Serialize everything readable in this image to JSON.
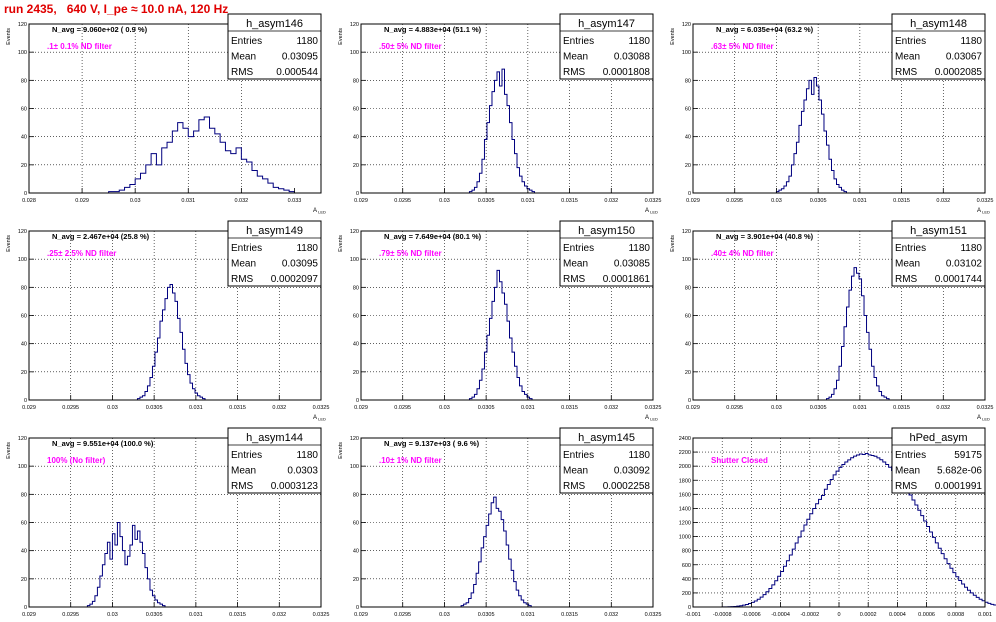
{
  "run_title": "run 2435,   640 V, I_pe ≈ 10.0 nA, 120 Hz",
  "colors": {
    "histogram": "#00007f",
    "filter_label": "#ff00ff",
    "title": "#e00000",
    "grid": "#000000"
  },
  "chart_data": [
    {
      "type": "histogram",
      "name": "h_asym146",
      "ylabel": "Events",
      "xlabel": "A_LED",
      "navg": "N_avg = 9.060e+02 ( 0.9 %)",
      "filter": ".1± 0.1% ND filter",
      "stats": {
        "entries_label": "Entries",
        "entries": "1180",
        "mean_label": "Mean",
        "mean": "0.03095",
        "rms_label": "RMS",
        "rms": "0.000544"
      },
      "xlim": [
        0.028,
        0.0335
      ],
      "ylim": [
        0,
        120
      ],
      "xticks": [
        "0.028",
        "0.029",
        "0.03",
        "0.031",
        "0.032",
        "0.033"
      ],
      "xtick_values": [
        0.028,
        0.029,
        0.03,
        0.031,
        0.032,
        0.033
      ],
      "yticks": [
        "0",
        "20",
        "40",
        "60",
        "80",
        "100",
        "120"
      ],
      "bins_x0": 0.0295,
      "bin_width": 0.0001,
      "counts": [
        1,
        1,
        2,
        4,
        6,
        10,
        14,
        20,
        28,
        20,
        32,
        36,
        44,
        50,
        46,
        40,
        44,
        52,
        54,
        46,
        42,
        36,
        30,
        28,
        32,
        24,
        22,
        16,
        12,
        10,
        7,
        4,
        3,
        2,
        1
      ]
    },
    {
      "type": "histogram",
      "name": "h_asym147",
      "ylabel": "Events",
      "xlabel": "A_LED",
      "navg": "N_avg = 4.883e+04 (51.1 %)",
      "filter": ".50± 5% ND filter",
      "stats": {
        "entries_label": "Entries",
        "entries": "1180",
        "mean_label": "Mean",
        "mean": "0.03088",
        "rms_label": "RMS",
        "rms": "0.0001808"
      },
      "xlim": [
        0.029,
        0.0325
      ],
      "ylim": [
        0,
        120
      ],
      "xticks": [
        "0.029",
        "0.0295",
        "0.03",
        "0.0305",
        "0.031",
        "0.0315",
        "0.032",
        "0.0325"
      ],
      "xtick_values": [
        0.029,
        0.0295,
        0.03,
        0.0305,
        0.031,
        0.0315,
        0.032,
        0.0325
      ],
      "yticks": [
        "0",
        "20",
        "40",
        "60",
        "80",
        "100",
        "120"
      ],
      "bins_x0": 0.0303,
      "bin_width": 3e-05,
      "counts": [
        1,
        2,
        4,
        8,
        14,
        24,
        38,
        50,
        62,
        72,
        80,
        86,
        76,
        88,
        70,
        62,
        50,
        38,
        28,
        18,
        12,
        8,
        5,
        3,
        2,
        1
      ]
    },
    {
      "type": "histogram",
      "name": "h_asym148",
      "ylabel": "Events",
      "xlabel": "A_LED",
      "navg": "N_avg = 6.035e+04 (63.2 %)",
      "filter": ".63± 5% ND filter",
      "stats": {
        "entries_label": "Entries",
        "entries": "1180",
        "mean_label": "Mean",
        "mean": "0.03067",
        "rms_label": "RMS",
        "rms": "0.0002085"
      },
      "xlim": [
        0.029,
        0.0325
      ],
      "ylim": [
        0,
        120
      ],
      "xticks": [
        "0.029",
        "0.0295",
        "0.03",
        "0.0305",
        "0.031",
        "0.0315",
        "0.032",
        "0.0325"
      ],
      "xtick_values": [
        0.029,
        0.0295,
        0.03,
        0.0305,
        0.031,
        0.0315,
        0.032,
        0.0325
      ],
      "yticks": [
        "0",
        "20",
        "40",
        "60",
        "80",
        "100",
        "120"
      ],
      "bins_x0": 0.03,
      "bin_width": 3e-05,
      "counts": [
        1,
        2,
        3,
        5,
        8,
        12,
        20,
        28,
        36,
        48,
        58,
        66,
        74,
        80,
        70,
        82,
        76,
        66,
        56,
        44,
        34,
        24,
        16,
        10,
        6,
        4,
        2,
        1
      ]
    },
    {
      "type": "histogram",
      "name": "h_asym149",
      "ylabel": "Events",
      "xlabel": "A_LED",
      "navg": "N_avg = 2.467e+04 (25.8 %)",
      "filter": ".25± 2.5% ND filter",
      "stats": {
        "entries_label": "Entries",
        "entries": "1180",
        "mean_label": "Mean",
        "mean": "0.03095",
        "rms_label": "RMS",
        "rms": "0.0002097"
      },
      "xlim": [
        0.029,
        0.0325
      ],
      "ylim": [
        0,
        120
      ],
      "xticks": [
        "0.029",
        "0.0295",
        "0.03",
        "0.0305",
        "0.031",
        "0.0315",
        "0.032",
        "0.0325"
      ],
      "xtick_values": [
        0.029,
        0.0295,
        0.03,
        0.0305,
        0.031,
        0.0315,
        0.032,
        0.0325
      ],
      "yticks": [
        "0",
        "20",
        "40",
        "60",
        "80",
        "100",
        "120"
      ],
      "bins_x0": 0.0303,
      "bin_width": 3e-05,
      "counts": [
        1,
        2,
        3,
        6,
        10,
        16,
        24,
        34,
        44,
        56,
        64,
        72,
        80,
        82,
        76,
        70,
        58,
        48,
        36,
        26,
        18,
        12,
        8,
        5,
        3,
        2,
        1
      ]
    },
    {
      "type": "histogram",
      "name": "h_asym150",
      "ylabel": "Events",
      "xlabel": "A_LED",
      "navg": "N_avg = 7.649e+04 (80.1 %)",
      "filter": ".79± 5% ND filter",
      "stats": {
        "entries_label": "Entries",
        "entries": "1180",
        "mean_label": "Mean",
        "mean": "0.03085",
        "rms_label": "RMS",
        "rms": "0.0001861"
      },
      "xlim": [
        0.029,
        0.0325
      ],
      "ylim": [
        0,
        120
      ],
      "xticks": [
        "0.029",
        "0.0295",
        "0.03",
        "0.0305",
        "0.031",
        "0.0315",
        "0.032",
        "0.0325"
      ],
      "xtick_values": [
        0.029,
        0.0295,
        0.03,
        0.0305,
        0.031,
        0.0315,
        0.032,
        0.0325
      ],
      "yticks": [
        "0",
        "20",
        "40",
        "60",
        "80",
        "100",
        "120"
      ],
      "bins_x0": 0.0303,
      "bin_width": 3e-05,
      "counts": [
        1,
        2,
        4,
        8,
        14,
        22,
        34,
        46,
        58,
        70,
        80,
        92,
        84,
        76,
        68,
        56,
        44,
        34,
        24,
        16,
        10,
        6,
        4,
        2,
        1
      ]
    },
    {
      "type": "histogram",
      "name": "h_asym151",
      "ylabel": "Events",
      "xlabel": "A_LED",
      "navg": "N_avg = 3.901e+04 (40.8 %)",
      "filter": ".40± 4% ND filter",
      "stats": {
        "entries_label": "Entries",
        "entries": "1180",
        "mean_label": "Mean",
        "mean": "0.03102",
        "rms_label": "RMS",
        "rms": "0.0001744"
      },
      "xlim": [
        0.029,
        0.0325
      ],
      "ylim": [
        0,
        120
      ],
      "xticks": [
        "0.029",
        "0.0295",
        "0.03",
        "0.0305",
        "0.031",
        "0.0315",
        "0.032",
        "0.0325"
      ],
      "xtick_values": [
        0.029,
        0.0295,
        0.03,
        0.0305,
        0.031,
        0.0315,
        0.032,
        0.0325
      ],
      "yticks": [
        "0",
        "20",
        "40",
        "60",
        "80",
        "100",
        "120"
      ],
      "bins_x0": 0.0306,
      "bin_width": 3e-05,
      "counts": [
        1,
        2,
        4,
        8,
        14,
        24,
        38,
        52,
        66,
        78,
        88,
        94,
        90,
        86,
        74,
        60,
        48,
        36,
        24,
        16,
        10,
        6,
        3,
        2,
        1
      ]
    },
    {
      "type": "histogram",
      "name": "h_asym144",
      "ylabel": "Events",
      "xlabel": "A_LED",
      "navg": "N_avg = 9.551e+04 (100.0 %)",
      "filter": "100% (No filter)",
      "stats": {
        "entries_label": "Entries",
        "entries": "1180",
        "mean_label": "Mean",
        "mean": "0.0303",
        "rms_label": "RMS",
        "rms": "0.0003123"
      },
      "xlim": [
        0.029,
        0.0325
      ],
      "ylim": [
        0,
        120
      ],
      "xticks": [
        "0.029",
        "0.0295",
        "0.03",
        "0.0305",
        "0.031",
        "0.0315",
        "0.032",
        "0.0325"
      ],
      "xtick_values": [
        0.029,
        0.0295,
        0.03,
        0.0305,
        0.031,
        0.0315,
        0.032,
        0.0325
      ],
      "yticks": [
        "0",
        "20",
        "40",
        "60",
        "80",
        "100",
        "120"
      ],
      "bins_x0": 0.0297,
      "bin_width": 3e-05,
      "counts": [
        1,
        2,
        4,
        8,
        14,
        22,
        30,
        38,
        46,
        34,
        52,
        44,
        60,
        50,
        40,
        30,
        36,
        44,
        58,
        48,
        54,
        46,
        38,
        28,
        20,
        12,
        8,
        5,
        3,
        2,
        1
      ]
    },
    {
      "type": "histogram",
      "name": "h_asym145",
      "ylabel": "Events",
      "xlabel": "A_LED",
      "navg": "N_avg = 9.137e+03 ( 9.6 %)",
      "filter": ".10± 1% ND filter",
      "stats": {
        "entries_label": "Entries",
        "entries": "1180",
        "mean_label": "Mean",
        "mean": "0.03092",
        "rms_label": "RMS",
        "rms": "0.0002258"
      },
      "xlim": [
        0.029,
        0.0325
      ],
      "ylim": [
        0,
        120
      ],
      "xticks": [
        "0.029",
        "0.0295",
        "0.03",
        "0.0305",
        "0.031",
        "0.0315",
        "0.032",
        "0.0325"
      ],
      "xtick_values": [
        0.029,
        0.0295,
        0.03,
        0.0305,
        0.031,
        0.0315,
        0.032,
        0.0325
      ],
      "yticks": [
        "0",
        "20",
        "40",
        "60",
        "80",
        "100",
        "120"
      ],
      "bins_x0": 0.0302,
      "bin_width": 3e-05,
      "counts": [
        1,
        2,
        3,
        6,
        10,
        16,
        24,
        32,
        42,
        50,
        58,
        66,
        74,
        78,
        70,
        68,
        62,
        54,
        44,
        34,
        26,
        18,
        12,
        8,
        5,
        3,
        2,
        1
      ]
    },
    {
      "type": "histogram",
      "name": "hPed_asym",
      "ylabel": "",
      "xlabel": "",
      "navg": "",
      "filter": "Shutter Closed",
      "stats": {
        "entries_label": "Entries",
        "entries": "59175",
        "mean_label": "Mean",
        "mean": "5.682e-06",
        "rms_label": "RMS",
        "rms": "0.0001991"
      },
      "xlim": [
        -0.001,
        0.001
      ],
      "ylim": [
        0,
        2400
      ],
      "xticks": [
        "-0.001",
        "-0.0008",
        "-0.0006",
        "-0.0004",
        "-0.0002",
        "0",
        "0.0002",
        "0.0004",
        "0.0006",
        "0.0008",
        "0.001"
      ],
      "xtick_values": [
        -0.001,
        -0.0008,
        -0.0006,
        -0.0004,
        -0.0002,
        0,
        0.0002,
        0.0004,
        0.0006,
        0.0008,
        0.001
      ],
      "yticks": [
        "0",
        "200",
        "400",
        "600",
        "800",
        "1000",
        "1200",
        "1400",
        "1600",
        "1800",
        "2000",
        "2200",
        "2400"
      ],
      "bins_x0": -0.0008,
      "bin_width": 2e-05,
      "counts": [
        1,
        2,
        3,
        5,
        8,
        12,
        18,
        26,
        36,
        50,
        66,
        86,
        110,
        140,
        176,
        216,
        262,
        314,
        372,
        436,
        504,
        578,
        656,
        738,
        822,
        908,
        994,
        1080,
        1164,
        1246,
        1324,
        1398,
        1466,
        1528,
        1584,
        1672,
        1740,
        1810,
        1876,
        1930,
        1982,
        2024,
        2060,
        2090,
        2120,
        2142,
        2158,
        2172,
        2166,
        2180,
        2160,
        2152,
        2140,
        2118,
        2092,
        2060,
        2024,
        1984,
        1938,
        1890,
        1836,
        1780,
        1720,
        1656,
        1590,
        1520,
        1448,
        1374,
        1298,
        1222,
        1144,
        1066,
        988,
        910,
        834,
        758,
        686,
        616,
        550,
        488,
        430,
        376,
        326,
        280,
        238,
        200,
        166,
        136,
        110,
        88,
        68,
        52,
        38,
        28,
        20,
        14,
        9,
        6,
        4,
        2,
        1
      ]
    }
  ]
}
